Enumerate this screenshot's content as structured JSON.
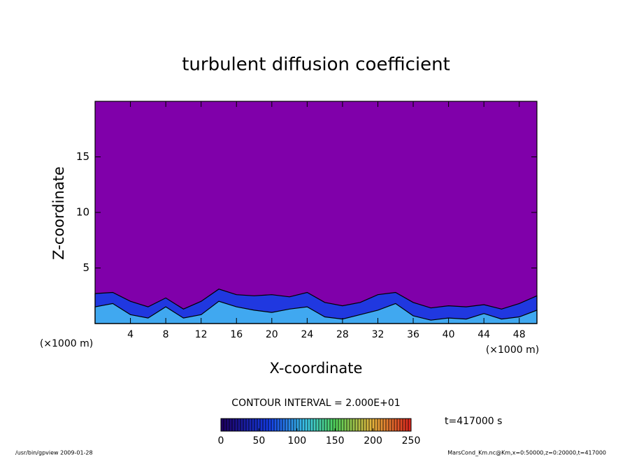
{
  "chart_data": {
    "type": "contour",
    "title": "turbulent diffusion coefficient",
    "xlabel": "X-coordinate",
    "ylabel": "Z-coordinate",
    "x_unit": "(×1000 m)",
    "xlim": [
      0,
      50
    ],
    "xticks": [
      4,
      8,
      12,
      16,
      20,
      24,
      28,
      32,
      36,
      40,
      44,
      48
    ],
    "ylim": [
      0,
      20
    ],
    "yticks": [
      5,
      10,
      15
    ],
    "background_color": "#8000aa",
    "x": [
      0,
      2,
      4,
      6,
      8,
      10,
      12,
      14,
      16,
      18,
      20,
      22,
      24,
      26,
      28,
      30,
      32,
      34,
      36,
      38,
      40,
      42,
      44,
      46,
      48,
      50
    ],
    "series": [
      {
        "color": "#2038e0",
        "values": [
          2.7,
          2.8,
          2.0,
          1.5,
          2.3,
          1.3,
          2.0,
          3.1,
          2.6,
          2.5,
          2.6,
          2.4,
          2.8,
          1.9,
          1.6,
          1.9,
          2.6,
          2.8,
          1.9,
          1.4,
          1.6,
          1.5,
          1.7,
          1.3,
          1.8,
          2.5
        ]
      },
      {
        "color": "#40a8f0",
        "values": [
          1.5,
          1.8,
          0.8,
          0.5,
          1.5,
          0.5,
          0.8,
          2.0,
          1.5,
          1.2,
          1.0,
          1.3,
          1.5,
          0.6,
          0.4,
          0.8,
          1.2,
          1.8,
          0.7,
          0.3,
          0.5,
          0.4,
          0.9,
          0.4,
          0.6,
          1.2
        ]
      }
    ],
    "contour_interval_label": "CONTOUR INTERVAL = 2.000E+01",
    "clim": [
      0,
      250
    ],
    "cticks": [
      0,
      50,
      100,
      150,
      200,
      250
    ],
    "time_label": "t=417000 s",
    "footer_left": "/usr/bin/gpview   2009-01-28",
    "footer_right": "MarsCond_Km.nc@Km,x=0:50000,z=0:20000,t=417000"
  }
}
